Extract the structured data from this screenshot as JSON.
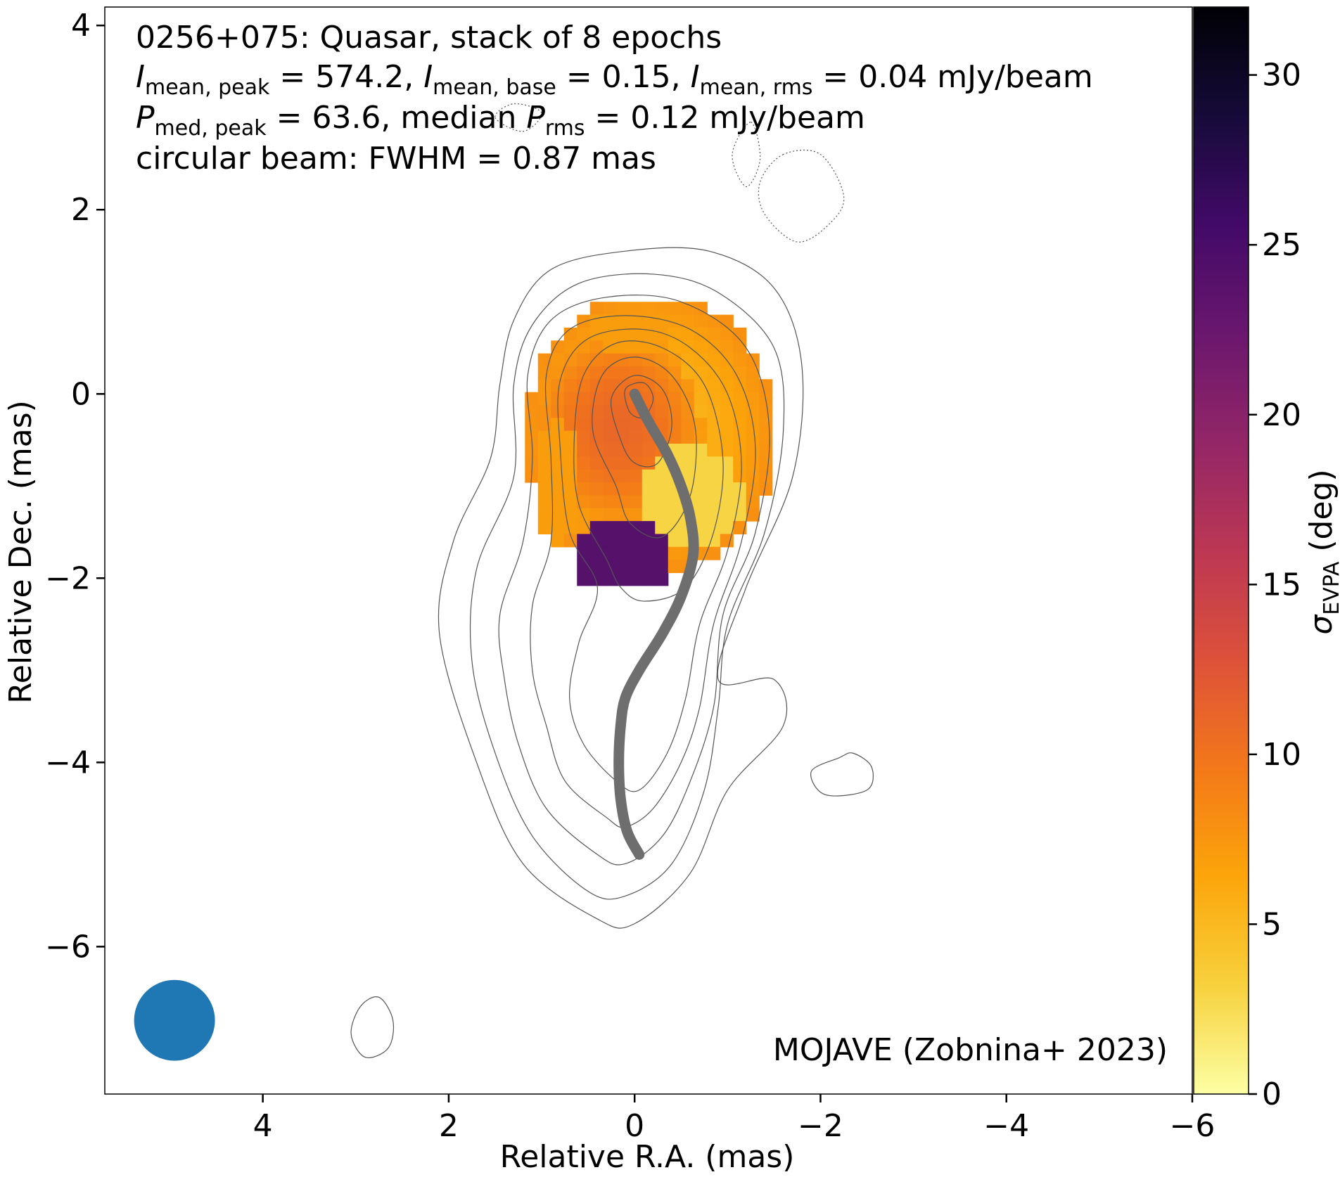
{
  "chart_data": {
    "type": "heatmap",
    "title_lines": {
      "line1": "0256+075: Quasar, stack of 8 epochs",
      "line2": {
        "i_peak_sub": "mean, peak",
        "i_peak_val": " = 574.2, ",
        "i_base_sub": "mean, base",
        "i_base_val": " = 0.15, ",
        "i_rms_sub": "mean, rms",
        "i_rms_val": " = 0.04 mJy/beam"
      },
      "line3": {
        "p_peak_sub": "med, peak",
        "p_peak_val": " = 63.6, median ",
        "p_rms_sub": "rms",
        "p_rms_val": " = 0.12 mJy/beam"
      },
      "line4": "circular beam: FWHM = 0.87 mas"
    },
    "credit": "MOJAVE (Zobnina+ 2023)",
    "xlabel": "Relative R.A. (mas)",
    "ylabel": "Relative Dec. (mas)",
    "colorbar_label_symbol": "σ",
    "colorbar_label_sub": "EVPA",
    "colorbar_label_unit": " (deg)",
    "xlim": [
      5.7,
      -6.0
    ],
    "ylim": [
      -7.6,
      4.2
    ],
    "x_ticks": [
      4,
      2,
      0,
      -2,
      -4,
      -6
    ],
    "y_ticks": [
      4,
      2,
      0,
      -2,
      -4,
      -6
    ],
    "x_tick_labels": [
      "4",
      "2",
      "0",
      "−2",
      "−4",
      "−6"
    ],
    "y_tick_labels": [
      "4",
      "2",
      "0",
      "−2",
      "−4",
      "−6"
    ],
    "colorbar_range": [
      0,
      32
    ],
    "colorbar_ticks": [
      0,
      5,
      10,
      15,
      20,
      25,
      30
    ],
    "colorbar_tick_labels": [
      "0",
      "5",
      "10",
      "15",
      "20",
      "25",
      "30"
    ],
    "colormap": "inferno_r",
    "beam": {
      "x": 4.95,
      "y": -6.8,
      "fwhm_mas": 0.87,
      "color": "#1f77b4"
    },
    "ridge_line": {
      "color": "#6e6e6e",
      "points": [
        [
          0,
          0
        ],
        [
          -0.15,
          -0.3
        ],
        [
          -0.35,
          -0.65
        ],
        [
          -0.5,
          -1.0
        ],
        [
          -0.6,
          -1.35
        ],
        [
          -0.63,
          -1.75
        ],
        [
          -0.5,
          -2.2
        ],
        [
          -0.3,
          -2.6
        ],
        [
          -0.05,
          -3.0
        ],
        [
          0.1,
          -3.3
        ],
        [
          0.15,
          -3.6
        ],
        [
          0.17,
          -4.0
        ],
        [
          0.15,
          -4.4
        ],
        [
          0.08,
          -4.75
        ],
        [
          -0.05,
          -5.0
        ]
      ]
    },
    "contours": [
      {
        "style": "solid",
        "points": [
          [
            0.4,
            -5.7
          ],
          [
            1.2,
            -5.1
          ],
          [
            1.7,
            -4.0
          ],
          [
            2.1,
            -2.6
          ],
          [
            1.95,
            -1.6
          ],
          [
            1.55,
            -0.7
          ],
          [
            1.45,
            0.1
          ],
          [
            1.3,
            0.8
          ],
          [
            0.9,
            1.35
          ],
          [
            0.1,
            1.55
          ],
          [
            -0.8,
            1.55
          ],
          [
            -1.5,
            1.15
          ],
          [
            -1.8,
            0.3
          ],
          [
            -1.7,
            -0.9
          ],
          [
            -1.2,
            -2.1
          ],
          [
            -0.9,
            -3.1
          ],
          [
            -1.5,
            -3.1
          ],
          [
            -1.6,
            -3.6
          ],
          [
            -1.0,
            -4.3
          ],
          [
            -0.6,
            -5.2
          ],
          [
            0.0,
            -5.75
          ]
        ]
      },
      {
        "style": "solid",
        "points": [
          [
            0.5,
            -5.4
          ],
          [
            1.1,
            -4.8
          ],
          [
            1.5,
            -3.9
          ],
          [
            1.75,
            -2.9
          ],
          [
            1.7,
            -1.9
          ],
          [
            1.3,
            -0.9
          ],
          [
            1.3,
            0.1
          ],
          [
            1.1,
            0.75
          ],
          [
            0.6,
            1.2
          ],
          [
            -0.2,
            1.3
          ],
          [
            -0.9,
            1.1
          ],
          [
            -1.5,
            0.5
          ],
          [
            -1.6,
            -0.4
          ],
          [
            -1.4,
            -1.5
          ],
          [
            -1.0,
            -2.5
          ],
          [
            -0.9,
            -3.4
          ],
          [
            -0.75,
            -4.3
          ],
          [
            -0.4,
            -5.1
          ],
          [
            0.1,
            -5.45
          ]
        ]
      },
      {
        "style": "solid",
        "points": [
          [
            0.4,
            -5.0
          ],
          [
            0.95,
            -4.5
          ],
          [
            1.25,
            -3.8
          ],
          [
            1.4,
            -3.1
          ],
          [
            1.45,
            -2.4
          ],
          [
            1.2,
            -1.6
          ],
          [
            1.1,
            -0.7
          ],
          [
            1.15,
            0.2
          ],
          [
            0.9,
            0.8
          ],
          [
            0.3,
            1.05
          ],
          [
            -0.5,
            1.0
          ],
          [
            -1.2,
            0.5
          ],
          [
            -1.45,
            -0.4
          ],
          [
            -1.3,
            -1.5
          ],
          [
            -0.95,
            -2.4
          ],
          [
            -0.85,
            -3.4
          ],
          [
            -0.6,
            -4.2
          ],
          [
            -0.3,
            -4.8
          ],
          [
            0.1,
            -5.1
          ]
        ]
      },
      {
        "style": "solid",
        "points": [
          [
            0.3,
            -4.6
          ],
          [
            0.75,
            -4.2
          ],
          [
            0.95,
            -3.6
          ],
          [
            1.1,
            -3.0
          ],
          [
            1.1,
            -2.3
          ],
          [
            0.9,
            -1.6
          ],
          [
            0.9,
            -0.7
          ],
          [
            0.95,
            0.2
          ],
          [
            0.7,
            0.7
          ],
          [
            0.1,
            0.85
          ],
          [
            -0.6,
            0.7
          ],
          [
            -1.1,
            0.2
          ],
          [
            -1.3,
            -0.6
          ],
          [
            -1.15,
            -1.6
          ],
          [
            -0.85,
            -2.5
          ],
          [
            -0.7,
            -3.4
          ],
          [
            -0.5,
            -4.0
          ],
          [
            -0.2,
            -4.5
          ],
          [
            0.1,
            -4.7
          ]
        ]
      },
      {
        "style": "solid",
        "points": [
          [
            0.2,
            -4.2
          ],
          [
            0.55,
            -3.8
          ],
          [
            0.7,
            -3.3
          ],
          [
            0.6,
            -2.7
          ],
          [
            0.4,
            -2.1
          ],
          [
            0.7,
            -1.5
          ],
          [
            0.8,
            -0.6
          ],
          [
            0.8,
            0.15
          ],
          [
            0.5,
            0.6
          ],
          [
            -0.1,
            0.7
          ],
          [
            -0.6,
            0.5
          ],
          [
            -1.0,
            0.0
          ],
          [
            -1.15,
            -0.8
          ],
          [
            -1.0,
            -1.7
          ],
          [
            -0.7,
            -2.5
          ],
          [
            -0.55,
            -3.3
          ],
          [
            -0.35,
            -3.9
          ],
          [
            -0.05,
            -4.3
          ]
        ]
      },
      {
        "style": "solid",
        "points": [
          [
            0.3,
            -1.8
          ],
          [
            0.6,
            -1.2
          ],
          [
            0.65,
            -0.5
          ],
          [
            0.55,
            0.2
          ],
          [
            0.2,
            0.55
          ],
          [
            -0.3,
            0.5
          ],
          [
            -0.75,
            0.1
          ],
          [
            -0.95,
            -0.7
          ],
          [
            -0.85,
            -1.5
          ],
          [
            -0.55,
            -2.1
          ],
          [
            -0.1,
            -2.25
          ],
          [
            0.15,
            -2.1
          ]
        ]
      },
      {
        "style": "solid",
        "points": [
          [
            0.2,
            -1.0
          ],
          [
            0.45,
            -0.4
          ],
          [
            0.35,
            0.2
          ],
          [
            0.0,
            0.4
          ],
          [
            -0.4,
            0.2
          ],
          [
            -0.65,
            -0.35
          ],
          [
            -0.6,
            -1.1
          ],
          [
            -0.3,
            -1.55
          ],
          [
            0.05,
            -1.4
          ]
        ]
      },
      {
        "style": "solid",
        "points": [
          [
            0.15,
            -0.5
          ],
          [
            0.25,
            -0.05
          ],
          [
            0.0,
            0.2
          ],
          [
            -0.3,
            0.05
          ],
          [
            -0.4,
            -0.35
          ],
          [
            -0.25,
            -0.75
          ],
          [
            0.0,
            -0.75
          ]
        ]
      },
      {
        "style": "solid",
        "points": [
          [
            0.05,
            -0.2
          ],
          [
            0.1,
            0.05
          ],
          [
            -0.1,
            0.12
          ],
          [
            -0.2,
            -0.05
          ],
          [
            -0.1,
            -0.25
          ]
        ]
      },
      {
        "style": "solid",
        "points": [
          [
            -2.2,
            -3.95
          ],
          [
            -1.9,
            -4.1
          ],
          [
            -2.05,
            -4.35
          ],
          [
            -2.5,
            -4.3
          ],
          [
            -2.55,
            -4.05
          ],
          [
            -2.35,
            -3.9
          ]
        ]
      },
      {
        "style": "solid",
        "points": [
          [
            2.75,
            -6.55
          ],
          [
            2.6,
            -6.8
          ],
          [
            2.65,
            -7.1
          ],
          [
            2.9,
            -7.2
          ],
          [
            3.05,
            -6.95
          ],
          [
            2.95,
            -6.65
          ]
        ]
      },
      {
        "style": "dotted",
        "points": [
          [
            -1.6,
            2.6
          ],
          [
            -1.35,
            2.3
          ],
          [
            -1.4,
            1.95
          ],
          [
            -1.75,
            1.65
          ],
          [
            -2.1,
            1.85
          ],
          [
            -2.25,
            2.15
          ],
          [
            -2.0,
            2.6
          ]
        ]
      },
      {
        "style": "dotted",
        "points": [
          [
            -1.25,
            2.95
          ],
          [
            -1.35,
            2.55
          ],
          [
            -1.2,
            2.25
          ],
          [
            -1.05,
            2.6
          ]
        ]
      },
      {
        "style": "dotted",
        "points": [
          [
            1.5,
            3.0
          ],
          [
            1.2,
            2.85
          ],
          [
            1.0,
            3.05
          ],
          [
            1.3,
            3.15
          ]
        ]
      }
    ],
    "polarization_blobs": [
      {
        "x": -0.1,
        "y": -0.35,
        "rx": 1.35,
        "ry": 1.55,
        "value": 5
      },
      {
        "x": 0.25,
        "y": -0.3,
        "rx": 0.9,
        "ry": 1.05,
        "value": 11
      },
      {
        "x": -0.55,
        "y": -1.05,
        "rx": 0.55,
        "ry": 0.55,
        "value": 3
      },
      {
        "x": 0.15,
        "y": 0.75,
        "rx": 0.45,
        "ry": 0.25,
        "value": 7
      },
      {
        "x": 0.9,
        "y": -0.9,
        "rx": 0.25,
        "ry": 0.65,
        "value": 7
      },
      {
        "x": 0.2,
        "y": -1.7,
        "rx": 0.55,
        "ry": 0.38,
        "value": 24
      }
    ]
  }
}
